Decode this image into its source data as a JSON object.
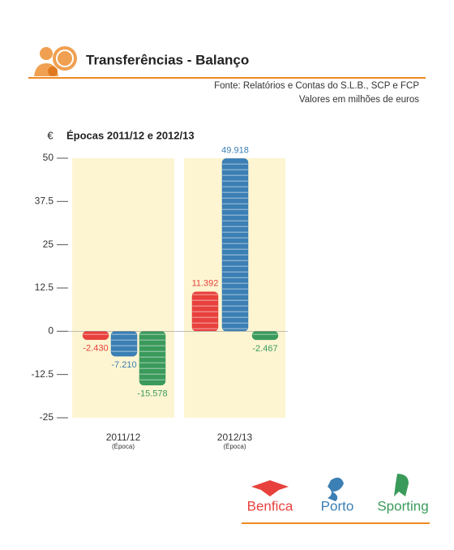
{
  "chart_data": {
    "type": "bar",
    "title": "Transferências - Balanço",
    "source": [
      "Fonte: Relatórios e Contas do S.L.B., SCP e FCP",
      "Valores em milhões de euros"
    ],
    "subtitle": "Épocas 2011/12 e 2012/13",
    "y_unit": "€",
    "categories": [
      "2011/12",
      "2012/13"
    ],
    "category_sublabel": "(Época)",
    "series": [
      {
        "name": "Benfica",
        "color": "#e8413d",
        "values": [
          -2.43,
          11.392
        ],
        "value_labels": [
          "-2.430",
          "11.392"
        ]
      },
      {
        "name": "Porto",
        "color": "#3b7fb4",
        "values": [
          -7.21,
          49.918
        ],
        "value_labels": [
          "-7.210",
          "49.918"
        ]
      },
      {
        "name": "Sporting",
        "color": "#3a9a5b",
        "values": [
          -15.578,
          -2.467
        ],
        "value_labels": [
          "-15.578",
          "-2.467"
        ]
      }
    ],
    "ylim": [
      -25,
      50
    ],
    "yticks": [
      50,
      37.5,
      25,
      12.5,
      0,
      -12.5,
      -25
    ]
  }
}
